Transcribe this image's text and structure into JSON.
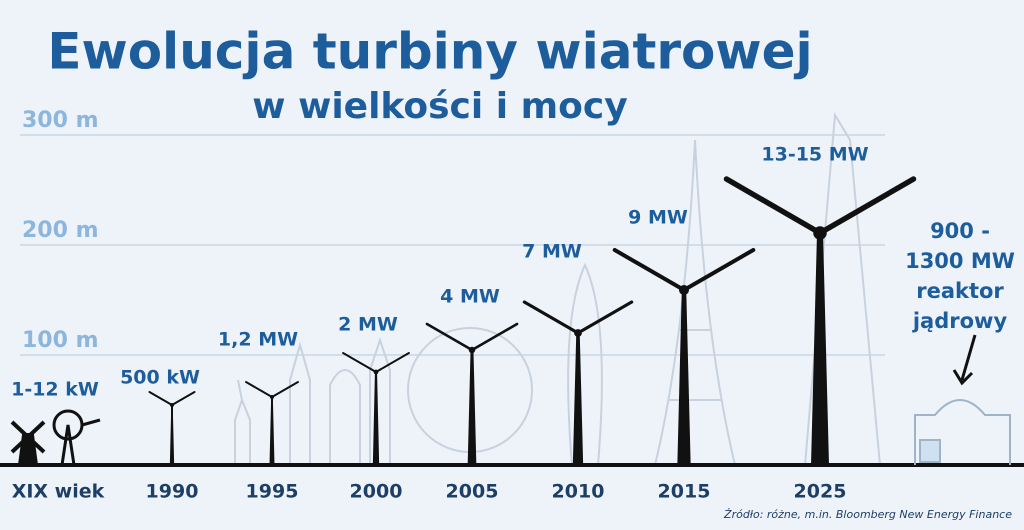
{
  "header": {
    "title": "Ewolucja turbiny wiatrowej",
    "subtitle": "w wielkości i mocy"
  },
  "scale": [
    "300 m",
    "200 m",
    "100 m"
  ],
  "items": [
    {
      "year": "XIX wiek",
      "power": "1-12 kW"
    },
    {
      "year": "1990",
      "power": "500 kW"
    },
    {
      "year": "1995",
      "power": "1,2 MW"
    },
    {
      "year": "2000",
      "power": "2 MW"
    },
    {
      "year": "2005",
      "power": "4 MW"
    },
    {
      "year": "2010",
      "power": "7 MW"
    },
    {
      "year": "2015",
      "power": "9 MW"
    },
    {
      "year": "2025",
      "power": "13-15 MW"
    }
  ],
  "reactor": [
    "900 -",
    "1300 MW",
    "reaktor",
    "jądrowy"
  ],
  "footer": {
    "source": "Źródło: różne, m.in. Bloomberg New Energy Finance"
  }
}
